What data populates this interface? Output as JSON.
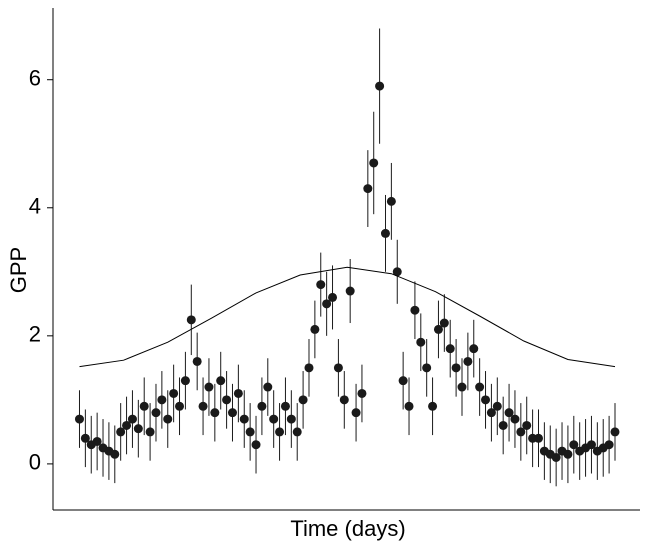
{
  "chart_data": {
    "type": "scatter",
    "x_label": "Time (days)",
    "y_label": "GPP",
    "xlim": [
      -17,
      382
    ],
    "ylim": [
      -0.72,
      7.12
    ],
    "yticks": [
      0,
      2,
      4,
      6
    ],
    "grid": false,
    "series": [
      {
        "color": "#1a1a1a",
        "x": [
          1,
          5,
          9,
          13,
          17,
          21,
          25,
          29,
          33,
          37,
          41,
          45,
          49,
          53,
          57,
          61,
          65,
          69,
          73,
          77,
          81,
          85,
          89,
          93,
          97,
          101,
          105,
          109,
          113,
          117,
          121,
          125,
          129,
          133,
          137,
          141,
          145,
          149,
          153,
          157,
          161,
          165,
          169,
          173,
          177,
          181,
          185,
          189,
          193,
          197,
          201,
          205,
          209,
          213,
          217,
          221,
          225,
          229,
          233,
          237,
          241,
          245,
          249,
          253,
          257,
          261,
          265,
          269,
          273,
          277,
          281,
          285,
          289,
          293,
          297,
          301,
          305,
          309,
          313,
          317,
          321,
          325,
          329,
          333,
          337,
          341,
          345,
          349,
          353,
          357,
          361,
          365
        ],
        "values": [
          0.7,
          0.4,
          0.3,
          0.35,
          0.25,
          0.2,
          0.15,
          0.5,
          0.6,
          0.7,
          0.55,
          0.9,
          0.5,
          0.8,
          1.0,
          0.7,
          1.1,
          0.9,
          1.3,
          2.25,
          1.6,
          0.9,
          1.2,
          0.8,
          1.3,
          1.0,
          0.8,
          1.1,
          0.7,
          0.5,
          0.3,
          0.9,
          1.2,
          0.7,
          0.5,
          0.9,
          0.7,
          0.5,
          1.0,
          1.5,
          2.1,
          2.8,
          2.5,
          2.6,
          1.5,
          1.0,
          2.7,
          0.8,
          1.1,
          4.3,
          4.7,
          5.9,
          3.6,
          4.1,
          3.0,
          1.3,
          0.9,
          2.4,
          1.9,
          1.5,
          0.9,
          2.1,
          2.2,
          1.8,
          1.5,
          1.2,
          1.6,
          1.8,
          1.2,
          1.0,
          0.8,
          0.9,
          0.6,
          0.8,
          0.7,
          0.5,
          0.6,
          0.4,
          0.4,
          0.2,
          0.15,
          0.1,
          0.2,
          0.15,
          0.3,
          0.2,
          0.25,
          0.3,
          0.2,
          0.25,
          0.3,
          0.5
        ],
        "errors": [
          0.45,
          0.45,
          0.45,
          0.45,
          0.45,
          0.45,
          0.45,
          0.45,
          0.45,
          0.45,
          0.45,
          0.45,
          0.45,
          0.45,
          0.45,
          0.45,
          0.45,
          0.45,
          0.45,
          0.55,
          0.45,
          0.45,
          0.45,
          0.45,
          0.45,
          0.45,
          0.45,
          0.45,
          0.45,
          0.45,
          0.45,
          0.45,
          0.45,
          0.45,
          0.45,
          0.45,
          0.45,
          0.45,
          0.45,
          0.45,
          0.45,
          0.5,
          0.5,
          0.5,
          0.45,
          0.45,
          0.5,
          0.45,
          0.45,
          0.6,
          0.8,
          0.9,
          0.6,
          0.6,
          0.5,
          0.45,
          0.45,
          0.45,
          0.45,
          0.45,
          0.45,
          0.45,
          0.45,
          0.45,
          0.45,
          0.45,
          0.45,
          0.45,
          0.45,
          0.45,
          0.45,
          0.45,
          0.45,
          0.45,
          0.45,
          0.45,
          0.45,
          0.45,
          0.45,
          0.45,
          0.45,
          0.45,
          0.45,
          0.45,
          0.45,
          0.45,
          0.45,
          0.45,
          0.45,
          0.45,
          0.45,
          0.45
        ]
      },
      {
        "color": "#000000",
        "x": [
          1,
          31,
          61,
          91,
          121,
          151,
          183,
          213,
          243,
          273,
          303,
          333,
          365
        ],
        "values": [
          1.52,
          1.62,
          1.9,
          2.28,
          2.67,
          2.95,
          3.07,
          2.97,
          2.69,
          2.31,
          1.92,
          1.63,
          1.52
        ]
      }
    ]
  }
}
